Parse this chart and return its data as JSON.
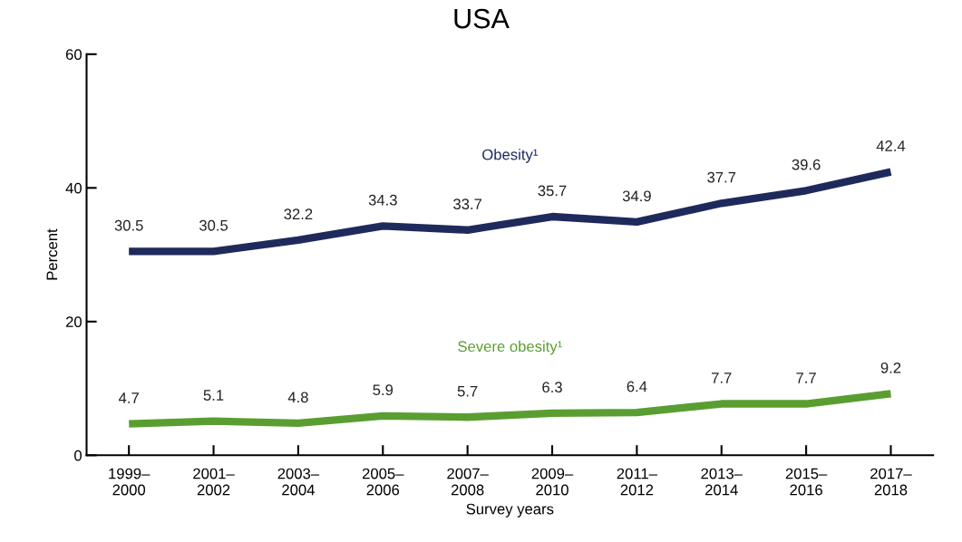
{
  "chart_data": {
    "type": "line",
    "title": "USA",
    "xlabel": "Survey years",
    "ylabel": "Percent",
    "categories": [
      "1999–\n2000",
      "2001–\n2002",
      "2003–\n2004",
      "2005–\n2006",
      "2007–\n2008",
      "2009–\n2010",
      "2011–\n2012",
      "2013–\n2014",
      "2015–\n2016",
      "2017–\n2018"
    ],
    "series": [
      {
        "name": "Obesity¹",
        "color": "#1f2a5c",
        "values": [
          30.5,
          30.5,
          32.2,
          34.3,
          33.7,
          35.7,
          34.9,
          37.7,
          39.6,
          42.4
        ]
      },
      {
        "name": "Severe obesity¹",
        "color": "#5a9e32",
        "values": [
          4.7,
          5.1,
          4.8,
          5.9,
          5.7,
          6.3,
          6.4,
          7.7,
          7.7,
          9.2
        ]
      }
    ],
    "ylim": [
      0,
      60
    ],
    "yticks": [
      0,
      20,
      40,
      60
    ],
    "data_labels": true,
    "grid": false,
    "legend": false,
    "marker": "none",
    "line_style": "solid"
  }
}
